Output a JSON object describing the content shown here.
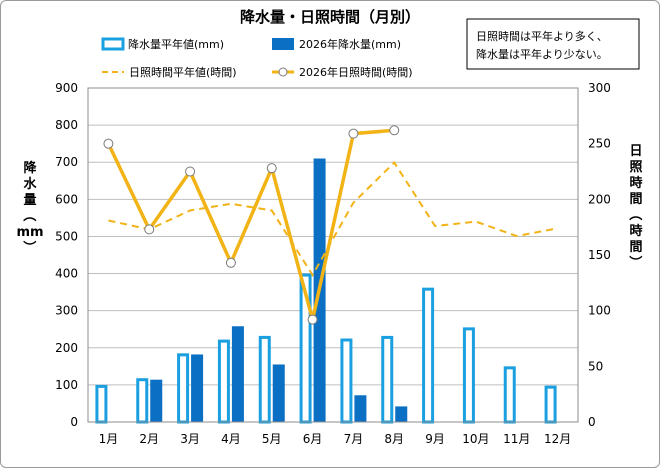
{
  "chart_data": {
    "type": "bar+line",
    "title": "降水量・日照時間（月別）",
    "categories": [
      "1月",
      "2月",
      "3月",
      "4月",
      "5月",
      "6月",
      "7月",
      "8月",
      "9月",
      "10月",
      "11月",
      "12月"
    ],
    "y_left": {
      "label": "降水量（mm）",
      "label_chars": [
        "降",
        "水",
        "量",
        "（",
        "mm",
        "）"
      ],
      "ylim": [
        0,
        900
      ],
      "ticks": [
        "0",
        "100",
        "200",
        "300",
        "400",
        "500",
        "600",
        "700",
        "800",
        "900"
      ]
    },
    "y_right": {
      "label": "日照時間（時間）",
      "label_chars": [
        "日",
        "照",
        "時",
        "間",
        "（",
        "時",
        "間",
        "）"
      ],
      "ylim": [
        0,
        300
      ],
      "ticks": [
        "0",
        "50",
        "100",
        "150",
        "200",
        "250",
        "300"
      ]
    },
    "grid": true,
    "series": [
      {
        "name": "降水量平年値(mm)",
        "kind": "bar",
        "axis": "left",
        "style": "outline",
        "color": "#1aa0e0",
        "values": [
          100,
          118,
          185,
          222,
          232,
          400,
          225,
          232,
          362,
          255,
          150,
          98
        ]
      },
      {
        "name": "2026年降水量(mm)",
        "kind": "bar",
        "axis": "left",
        "style": "filled",
        "color": "#0b6fc3",
        "values": [
          null,
          114,
          182,
          258,
          155,
          710,
          72,
          42,
          null,
          null,
          null,
          null
        ]
      },
      {
        "name": "日照時間平年値(時間)",
        "kind": "line",
        "axis": "right",
        "style": "dashed",
        "color": "#f2b316",
        "values": [
          181,
          173,
          190,
          196,
          190,
          132,
          197,
          233,
          176,
          180,
          167,
          174
        ]
      },
      {
        "name": "2026年日照時間(時間)",
        "kind": "line",
        "axis": "right",
        "style": "solid-marker",
        "color": "#f2b316",
        "values": [
          250,
          173,
          225,
          143,
          228,
          92,
          259,
          262,
          null,
          null,
          null,
          null
        ]
      }
    ],
    "annotation": [
      "日照時間は平年より多く、",
      "降水量は平年より少ない。"
    ]
  }
}
